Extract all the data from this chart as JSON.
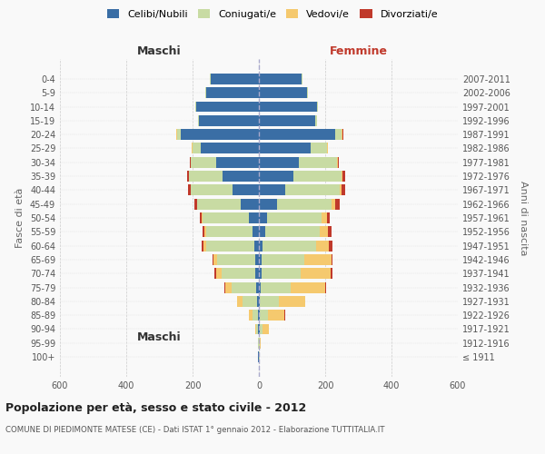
{
  "age_groups": [
    "100+",
    "95-99",
    "90-94",
    "85-89",
    "80-84",
    "75-79",
    "70-74",
    "65-69",
    "60-64",
    "55-59",
    "50-54",
    "45-49",
    "40-44",
    "35-39",
    "30-34",
    "25-29",
    "20-24",
    "15-19",
    "10-14",
    "5-9",
    "0-4"
  ],
  "birth_years": [
    "≤ 1911",
    "1912-1916",
    "1917-1921",
    "1922-1926",
    "1927-1931",
    "1932-1936",
    "1937-1941",
    "1942-1946",
    "1947-1951",
    "1952-1956",
    "1957-1961",
    "1962-1966",
    "1967-1971",
    "1972-1976",
    "1977-1981",
    "1982-1986",
    "1987-1991",
    "1992-1996",
    "1997-2001",
    "2002-2006",
    "2007-2011"
  ],
  "maschi": {
    "celibi": [
      2,
      1,
      2,
      4,
      5,
      8,
      12,
      10,
      15,
      20,
      30,
      55,
      80,
      110,
      130,
      175,
      235,
      180,
      190,
      160,
      145
    ],
    "coniugati": [
      1,
      2,
      5,
      15,
      45,
      75,
      100,
      115,
      145,
      140,
      140,
      130,
      125,
      100,
      75,
      25,
      12,
      3,
      2,
      2,
      2
    ],
    "vedovi": [
      0,
      0,
      3,
      10,
      15,
      18,
      18,
      12,
      8,
      5,
      3,
      2,
      1,
      1,
      1,
      2,
      2,
      0,
      0,
      0,
      0
    ],
    "divorziati": [
      0,
      0,
      0,
      0,
      2,
      2,
      5,
      3,
      5,
      5,
      5,
      8,
      8,
      5,
      3,
      2,
      1,
      0,
      0,
      0,
      0
    ]
  },
  "femmine": {
    "nubili": [
      1,
      1,
      2,
      3,
      4,
      5,
      7,
      8,
      12,
      18,
      25,
      55,
      80,
      105,
      120,
      155,
      230,
      170,
      175,
      145,
      130
    ],
    "coniugate": [
      1,
      2,
      8,
      25,
      55,
      90,
      120,
      130,
      160,
      165,
      165,
      165,
      165,
      145,
      115,
      50,
      20,
      5,
      3,
      2,
      2
    ],
    "vedove": [
      0,
      2,
      20,
      50,
      80,
      105,
      90,
      80,
      40,
      25,
      15,
      10,
      5,
      3,
      2,
      2,
      3,
      0,
      0,
      0,
      0
    ],
    "divorziate": [
      0,
      0,
      0,
      2,
      2,
      2,
      5,
      5,
      10,
      10,
      10,
      15,
      10,
      8,
      5,
      2,
      1,
      0,
      0,
      0,
      0
    ]
  },
  "colors": {
    "celibi": "#3a6ea5",
    "coniugati": "#c8dba3",
    "vedovi": "#f5c96e",
    "divorziati": "#c0392b"
  },
  "xlim": 600,
  "title": "Popolazione per età, sesso e stato civile - 2012",
  "subtitle": "COMUNE DI PIEDIMONTE MATESE (CE) - Dati ISTAT 1° gennaio 2012 - Elaborazione TUTTITALIA.IT",
  "ylabel_left": "Fasce di età",
  "ylabel_right": "Anni di nascita",
  "xlabel_left": "Maschi",
  "xlabel_right": "Femmine",
  "bg_color": "#f9f9f9",
  "grid_color": "#cccccc",
  "legend_labels": [
    "Celibi/Nubili",
    "Coniugati/e",
    "Vedovi/e",
    "Divorziati/e"
  ]
}
